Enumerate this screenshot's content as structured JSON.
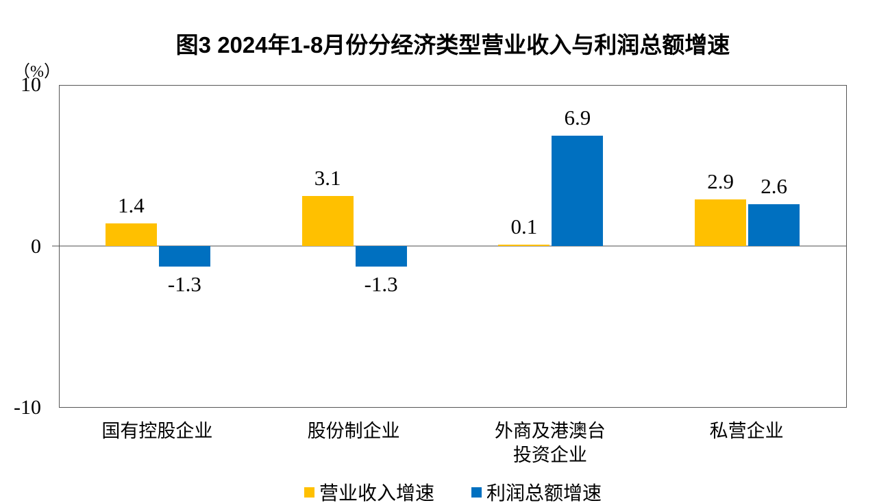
{
  "chart": {
    "title": "图3 2024年1-8月份分经济类型营业收入与利润总额增速",
    "unit_label": "（%）"
  },
  "chart_data": {
    "type": "bar",
    "title": "图3 2024年1-8月份分经济类型营业收入与利润总额增速",
    "ylabel": "（%）",
    "categories": [
      "国有控股企业",
      "股份制企业",
      "外商及港澳台\n投资企业",
      "私营企业"
    ],
    "series": [
      {
        "name": "营业收入增速",
        "color": "#FFC000",
        "values": [
          1.4,
          3.1,
          0.1,
          2.9
        ]
      },
      {
        "name": "利润总额增速",
        "color": "#0070C0",
        "values": [
          -1.3,
          -1.3,
          6.9,
          2.6
        ]
      }
    ],
    "ylim": [
      -10,
      10
    ],
    "yticks": [
      10,
      0,
      -10
    ],
    "grid": false,
    "data_labels": true,
    "legend_position": "bottom",
    "zero_line_color": "#a6a6a6",
    "plot_border_color": "#555555"
  }
}
